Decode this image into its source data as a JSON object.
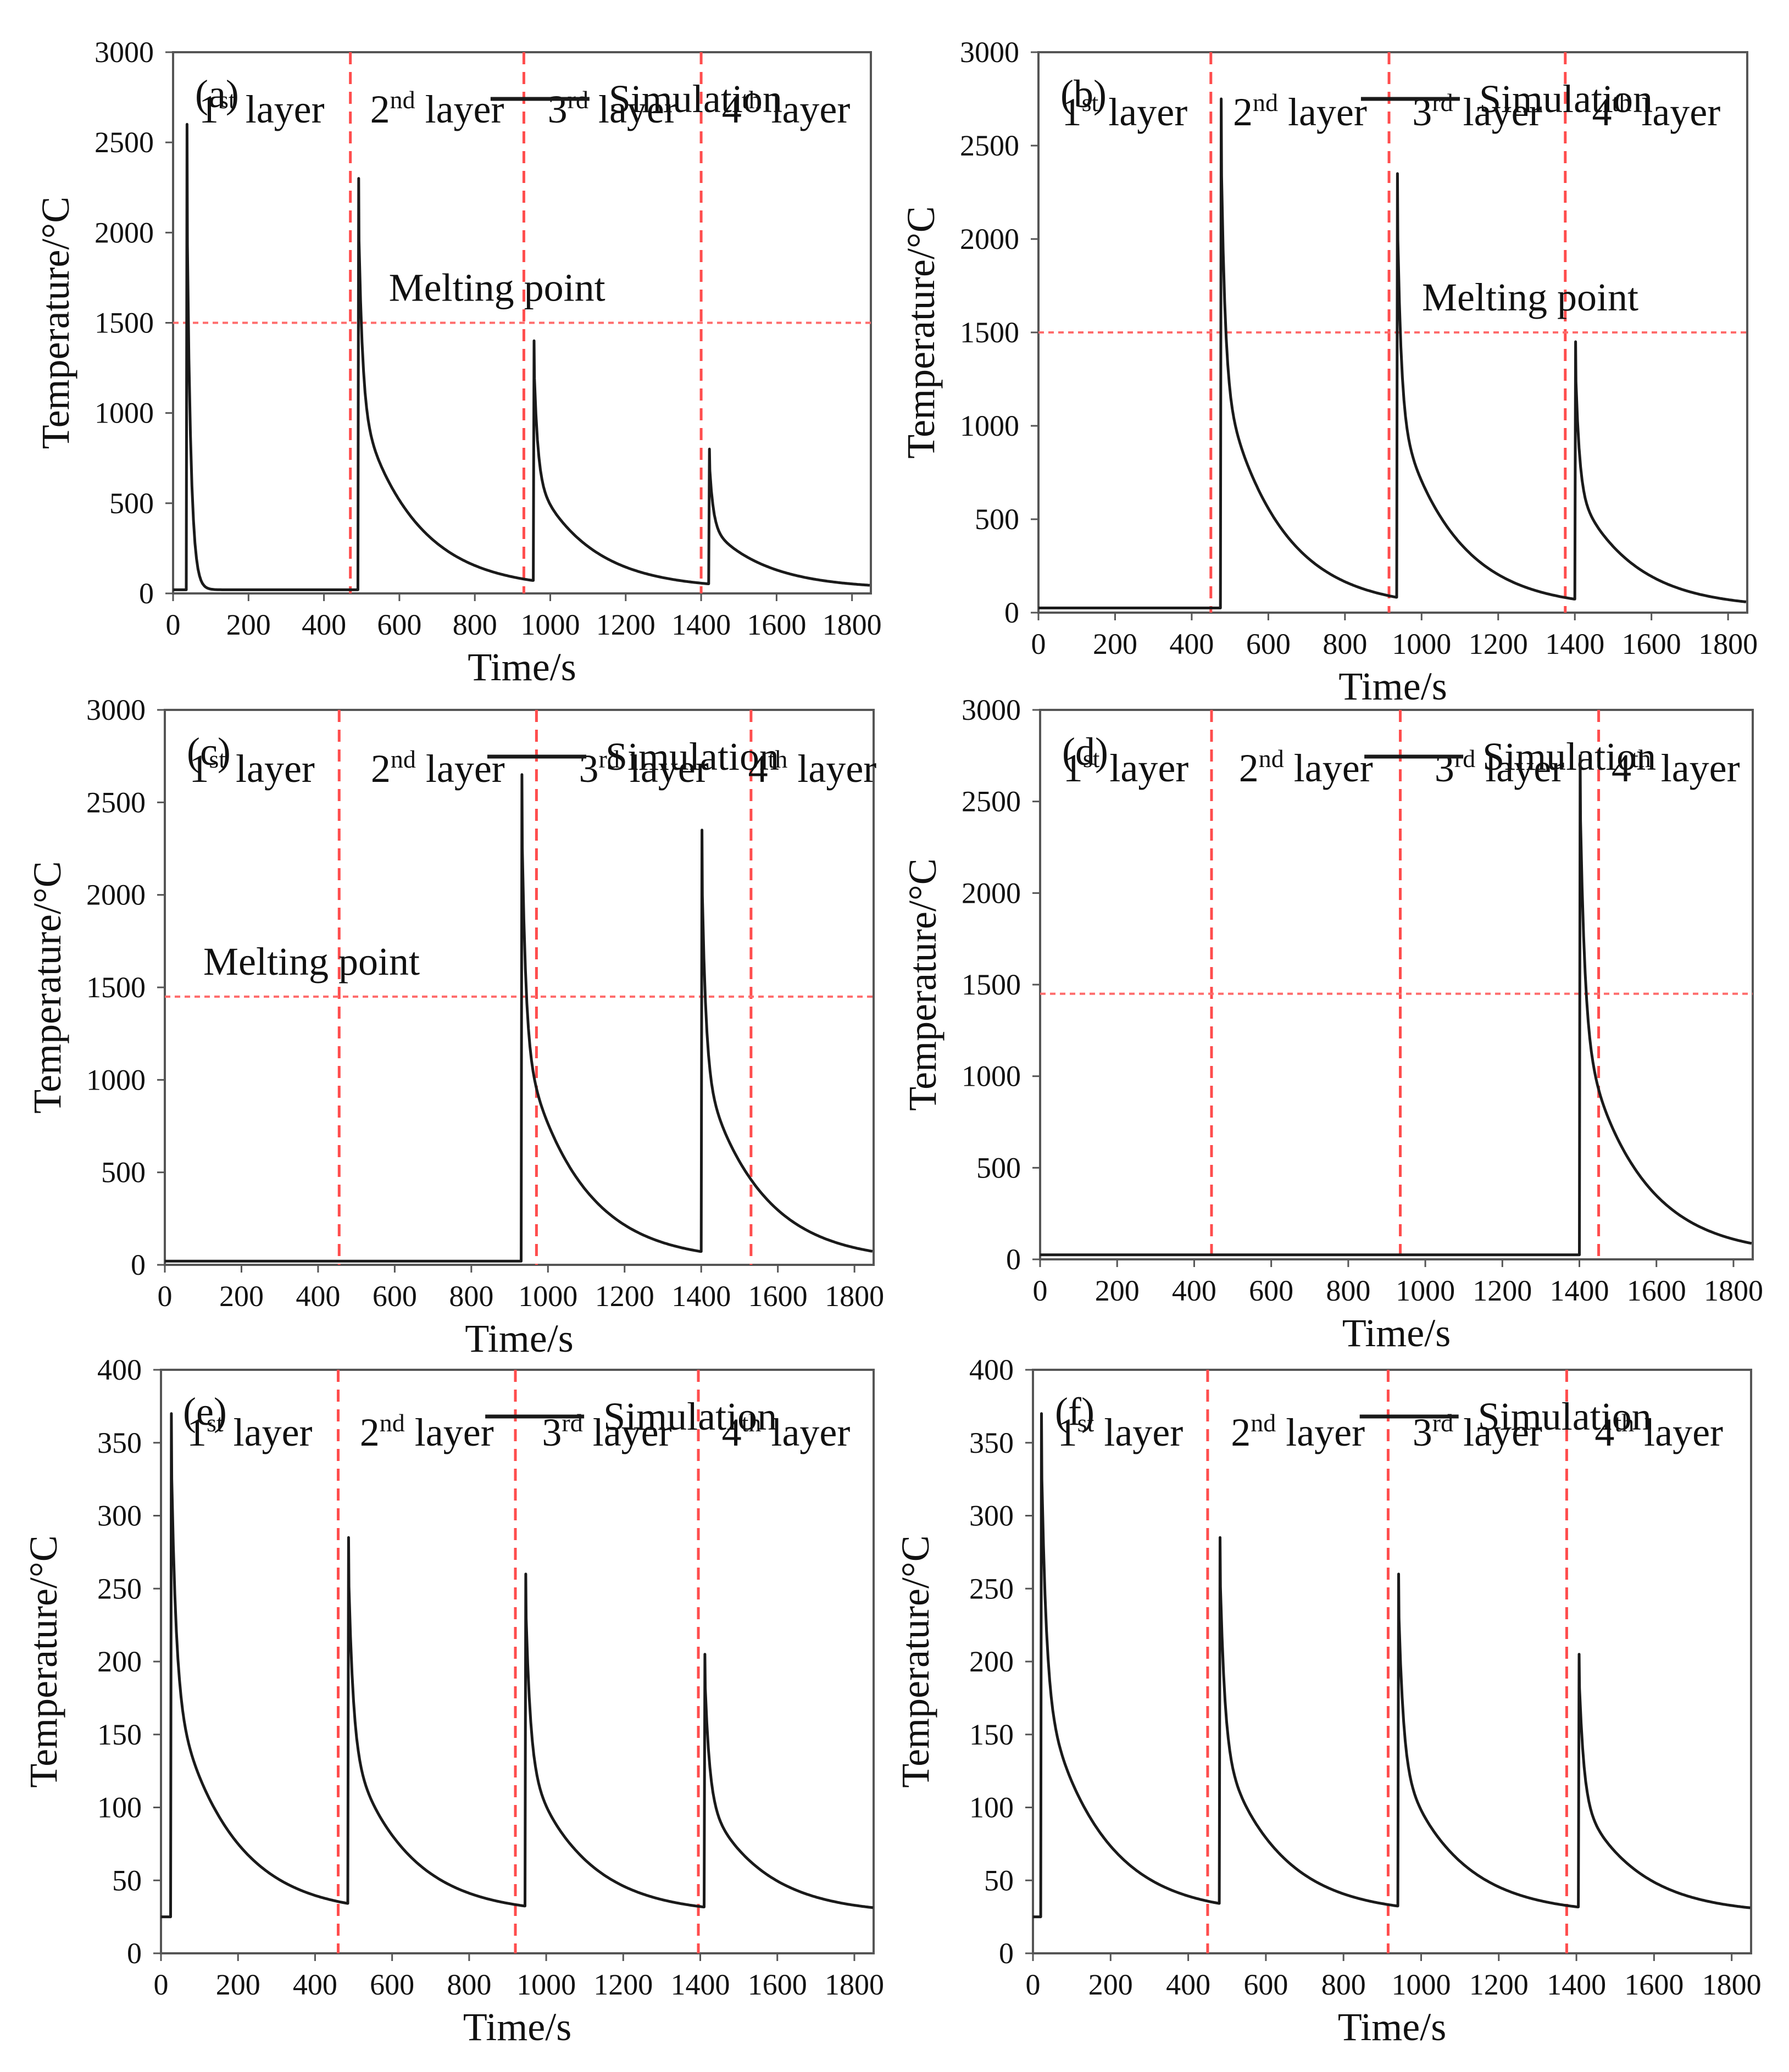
{
  "figure": {
    "legend_label": "Simulation",
    "colors": {
      "curve": "#1a1a1a",
      "layer_line": "#ff4d4d",
      "melting_line": "#ff6b6b",
      "frame": "#555555"
    }
  },
  "chart_data": [
    {
      "panel": "(a)",
      "type": "line",
      "xlabel": "Time/s",
      "ylabel": "Temperature/°C",
      "xlim": [
        0,
        1850
      ],
      "ylim": [
        0,
        3000
      ],
      "xticks": [
        "0",
        "200",
        "400",
        "600",
        "800",
        "1000",
        "1200",
        "1400",
        "1600",
        "1800"
      ],
      "yticks": [
        "0",
        "500",
        "1000",
        "1500",
        "2000",
        "2500",
        "3000"
      ],
      "layer_labels": [
        {
          "base": "1",
          "sup": "st",
          "rest": " layer"
        },
        {
          "base": "2",
          "sup": "nd",
          "rest": " layer"
        },
        {
          "base": "3",
          "sup": "rd",
          "rest": " layer"
        },
        {
          "base": "4",
          "sup": "th",
          "rest": " layer"
        }
      ],
      "layer_boundaries": [
        470,
        930,
        1400
      ],
      "melting_point": 1500,
      "melting_label": "Melting point",
      "baseline_start": 20,
      "peaks": [
        {
          "t": 35,
          "peak": 2600,
          "end": 20,
          "tau": 10,
          "plateau": 30,
          "tau2": 10
        },
        {
          "t": 490,
          "peak": 2300,
          "end": 25,
          "tau": 10,
          "plateau": 120,
          "tau2": 150
        },
        {
          "t": 955,
          "peak": 1400,
          "end": 25,
          "tau": 10,
          "plateau": 120,
          "tau2": 150
        },
        {
          "t": 1420,
          "peak": 800,
          "end": 25,
          "tau": 10,
          "plateau": 120,
          "tau2": 150
        }
      ]
    },
    {
      "panel": "(b)",
      "type": "line",
      "xlabel": "Time/s",
      "ylabel": "Temperature/°C",
      "xlim": [
        0,
        1850
      ],
      "ylim": [
        0,
        3000
      ],
      "xticks": [
        "0",
        "200",
        "400",
        "600",
        "800",
        "1000",
        "1200",
        "1400",
        "1600",
        "1800"
      ],
      "yticks": [
        "0",
        "500",
        "1000",
        "1500",
        "2000",
        "2500",
        "3000"
      ],
      "layer_labels": [
        {
          "base": "1",
          "sup": "st",
          "rest": " layer"
        },
        {
          "base": "2",
          "sup": "nd",
          "rest": " layer"
        },
        {
          "base": "3",
          "sup": "rd",
          "rest": " layer"
        },
        {
          "base": "4",
          "sup": "th",
          "rest": " layer"
        }
      ],
      "layer_boundaries": [
        450,
        915,
        1375
      ],
      "melting_point": 1500,
      "melting_label": "Melting point",
      "baseline_start": 25,
      "peaks": [
        {
          "t": 475,
          "peak": 2750,
          "end": 25,
          "tau": 10,
          "plateau": 120,
          "tau2": 150
        },
        {
          "t": 935,
          "peak": 2350,
          "end": 25,
          "tau": 10,
          "plateau": 120,
          "tau2": 150
        },
        {
          "t": 1400,
          "peak": 1450,
          "end": 25,
          "tau": 10,
          "plateau": 120,
          "tau2": 150
        }
      ]
    },
    {
      "panel": "(c)",
      "type": "line",
      "xlabel": "Time/s",
      "ylabel": "Temperature/°C",
      "xlim": [
        0,
        1850
      ],
      "ylim": [
        0,
        3000
      ],
      "xticks": [
        "0",
        "200",
        "400",
        "600",
        "800",
        "1000",
        "1200",
        "1400",
        "1600",
        "1800"
      ],
      "yticks": [
        "0",
        "500",
        "1000",
        "1500",
        "2000",
        "2500",
        "3000"
      ],
      "layer_labels": [
        {
          "base": "1",
          "sup": "st",
          "rest": " layer"
        },
        {
          "base": "2",
          "sup": "nd",
          "rest": " layer"
        },
        {
          "base": "3",
          "sup": "rd",
          "rest": " layer"
        },
        {
          "base": "4",
          "sup": "th",
          "rest": " layer"
        }
      ],
      "layer_boundaries": [
        455,
        970,
        1530
      ],
      "melting_point": 1450,
      "melting_label": "Melting point",
      "baseline_start": 20,
      "peaks": [
        {
          "t": 930,
          "peak": 2650,
          "end": 20,
          "tau": 10,
          "plateau": 120,
          "tau2": 150
        },
        {
          "t": 1400,
          "peak": 2350,
          "end": 20,
          "tau": 10,
          "plateau": 120,
          "tau2": 150
        }
      ]
    },
    {
      "panel": "(d)",
      "type": "line",
      "xlabel": "Time/s",
      "ylabel": "Temperature/°C",
      "xlim": [
        0,
        1850
      ],
      "ylim": [
        0,
        3000
      ],
      "xticks": [
        "0",
        "200",
        "400",
        "600",
        "800",
        "1000",
        "1200",
        "1400",
        "1600",
        "1800"
      ],
      "yticks": [
        "0",
        "500",
        "1000",
        "1500",
        "2000",
        "2500",
        "3000"
      ],
      "layer_labels": [
        {
          "base": "1",
          "sup": "st",
          "rest": " layer"
        },
        {
          "base": "2",
          "sup": "nd",
          "rest": " layer"
        },
        {
          "base": "3",
          "sup": "rd",
          "rest": " layer"
        },
        {
          "base": "4",
          "sup": "th",
          "rest": " layer"
        }
      ],
      "layer_boundaries": [
        445,
        935,
        1450
      ],
      "melting_point": 1450,
      "melting_label": "",
      "baseline_start": 25,
      "peaks": [
        {
          "t": 1400,
          "peak": 2750,
          "end": 25,
          "tau": 12,
          "plateau": 120,
          "tau2": 150
        }
      ]
    },
    {
      "panel": "(e)",
      "type": "line",
      "xlabel": "Time/s",
      "ylabel": "Temperature/°C",
      "xlim": [
        0,
        1850
      ],
      "ylim": [
        0,
        400
      ],
      "xticks": [
        "0",
        "200",
        "400",
        "600",
        "800",
        "1000",
        "1200",
        "1400",
        "1600",
        "1800"
      ],
      "yticks": [
        "0",
        "50",
        "100",
        "150",
        "200",
        "250",
        "300",
        "350",
        "400"
      ],
      "layer_labels": [
        {
          "base": "1",
          "sup": "st",
          "rest": " layer"
        },
        {
          "base": "2",
          "sup": "nd",
          "rest": " layer"
        },
        {
          "base": "3",
          "sup": "rd",
          "rest": " layer"
        },
        {
          "base": "4",
          "sup": "th",
          "rest": " layer"
        }
      ],
      "layer_boundaries": [
        460,
        920,
        1395
      ],
      "melting_point": null,
      "melting_label": "",
      "baseline_start": 25,
      "peaks": [
        {
          "t": 25,
          "peak": 370,
          "end": 27,
          "tau": 12,
          "plateau": 95,
          "tau2": 150
        },
        {
          "t": 485,
          "peak": 285,
          "end": 27,
          "tau": 12,
          "plateau": 95,
          "tau2": 150
        },
        {
          "t": 945,
          "peak": 260,
          "end": 27,
          "tau": 12,
          "plateau": 95,
          "tau2": 150
        },
        {
          "t": 1410,
          "peak": 205,
          "end": 27,
          "tau": 12,
          "plateau": 95,
          "tau2": 150
        }
      ]
    },
    {
      "panel": "(f)",
      "type": "line",
      "xlabel": "Time/s",
      "ylabel": "Temperature/°C",
      "xlim": [
        0,
        1850
      ],
      "ylim": [
        0,
        400
      ],
      "xticks": [
        "0",
        "200",
        "400",
        "600",
        "800",
        "1000",
        "1200",
        "1400",
        "1600",
        "1800"
      ],
      "yticks": [
        "0",
        "50",
        "100",
        "150",
        "200",
        "250",
        "300",
        "350",
        "400"
      ],
      "layer_labels": [
        {
          "base": "1",
          "sup": "st",
          "rest": " layer"
        },
        {
          "base": "2",
          "sup": "nd",
          "rest": " layer"
        },
        {
          "base": "3",
          "sup": "rd",
          "rest": " layer"
        },
        {
          "base": "4",
          "sup": "th",
          "rest": " layer"
        }
      ],
      "layer_boundaries": [
        450,
        915,
        1375
      ],
      "melting_point": null,
      "melting_label": "",
      "baseline_start": 25,
      "peaks": [
        {
          "t": 20,
          "peak": 370,
          "end": 27,
          "tau": 12,
          "plateau": 95,
          "tau2": 150
        },
        {
          "t": 480,
          "peak": 285,
          "end": 27,
          "tau": 12,
          "plateau": 95,
          "tau2": 150
        },
        {
          "t": 940,
          "peak": 260,
          "end": 27,
          "tau": 12,
          "plateau": 95,
          "tau2": 150
        },
        {
          "t": 1405,
          "peak": 205,
          "end": 27,
          "tau": 12,
          "plateau": 95,
          "tau2": 150
        }
      ]
    }
  ]
}
